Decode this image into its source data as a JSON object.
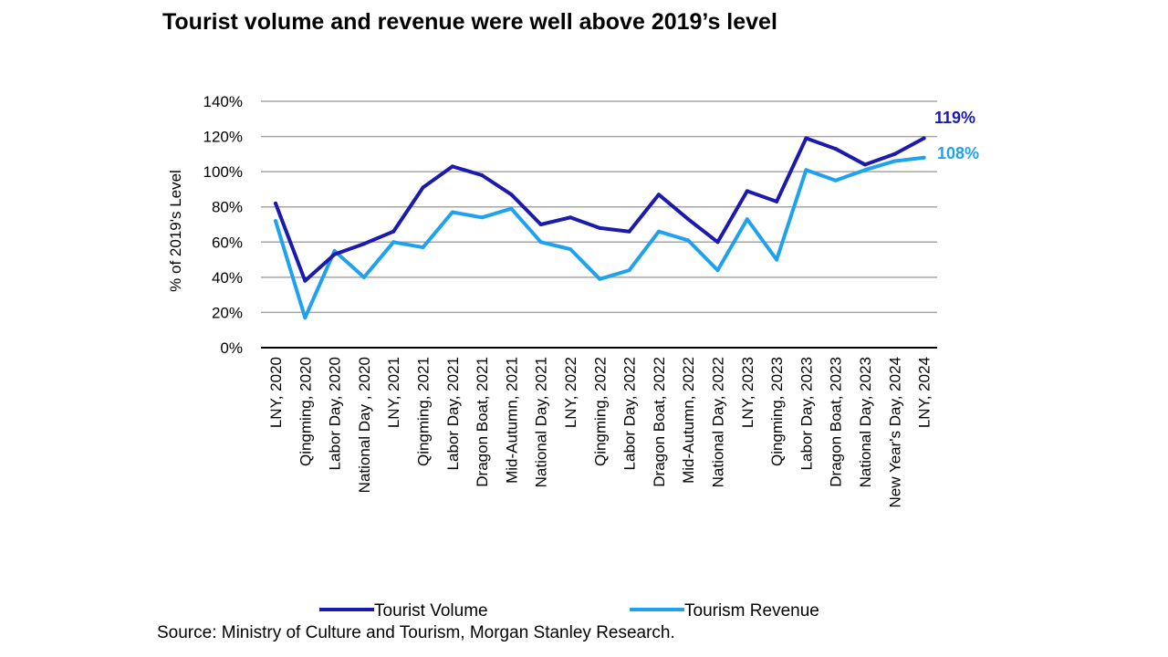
{
  "chart_data": {
    "type": "line",
    "title": "Tourist volume and revenue were well above 2019’s level",
    "ylabel": "% of 2019's Level",
    "xlabel": "",
    "ylim": [
      0,
      140
    ],
    "yticks": [
      0,
      20,
      40,
      60,
      80,
      100,
      120,
      140
    ],
    "ytick_labels": [
      "0%",
      "20%",
      "40%",
      "60%",
      "80%",
      "100%",
      "120%",
      "140%"
    ],
    "grid": true,
    "legend_position": "bottom",
    "categories": [
      "LNY, 2020",
      "Qingming, 2020",
      "Labor Day, 2020",
      "National Day , 2020",
      "LNY, 2021",
      "Qingming, 2021",
      "Labor Day, 2021",
      "Dragon Boat, 2021",
      "Mid-Autumn, 2021",
      "National Day, 2021",
      "LNY, 2022",
      "Qingming, 2022",
      "Labor Day, 2022",
      "Dragon Boat, 2022",
      "Mid-Autumn, 2022",
      "National Day, 2022",
      "LNY, 2023",
      "Qingming, 2023",
      "Labor Day, 2023",
      "Dragon Boat, 2023",
      "National Day, 2023",
      "New Year's Day, 2024",
      "LNY, 2024"
    ],
    "series": [
      {
        "name": "Tourist Volume",
        "color": "#1a1aae",
        "values": [
          82,
          38,
          53,
          59,
          66,
          91,
          103,
          98,
          87,
          70,
          74,
          68,
          66,
          87,
          73,
          60,
          89,
          83,
          119,
          113,
          104,
          110,
          119
        ],
        "end_label": "119%"
      },
      {
        "name": "Tourism Revenue",
        "color": "#1ea2ef",
        "values": [
          72,
          17,
          55,
          40,
          60,
          57,
          77,
          74,
          79,
          60,
          56,
          39,
          44,
          66,
          61,
          44,
          73,
          50,
          101,
          95,
          101,
          106,
          108
        ],
        "end_label": "108%"
      }
    ],
    "source": "Source: Ministry of Culture and Tourism, Morgan Stanley Research."
  }
}
